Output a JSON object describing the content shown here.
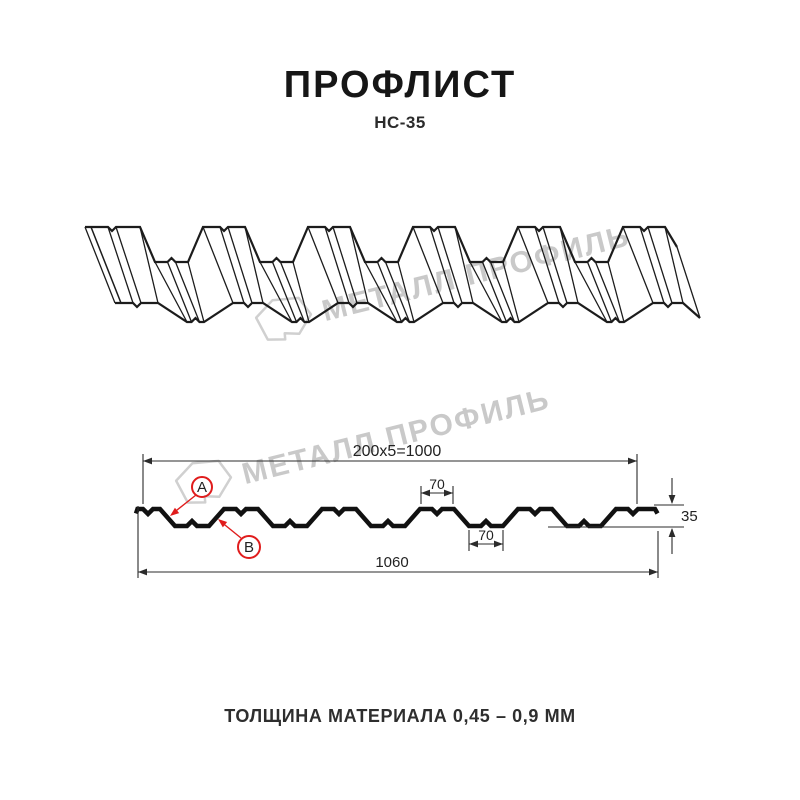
{
  "page": {
    "title": "ПРОФЛИСТ",
    "subtitle": "НС-35",
    "footer_note": "ТОЛЩИНА МАТЕРИАЛА 0,45 – 0,9 ММ"
  },
  "watermark": {
    "brand_text": "МЕТАЛЛ ПРОФИЛЬ"
  },
  "diagram": {
    "dimensions": {
      "top_span": "200x5=1000",
      "top_flat_width": "70",
      "bottom_flat_width": "70",
      "profile_height": "35",
      "total_width": "1060"
    },
    "labels": {
      "side_a": "A",
      "side_b": "B"
    }
  },
  "colors": {
    "ink": "#1c1c1c",
    "dim_line": "#2b2b2b",
    "accent_red": "#e01c1c",
    "watermark_gray": "#c9c9c9",
    "background": "#ffffff"
  }
}
